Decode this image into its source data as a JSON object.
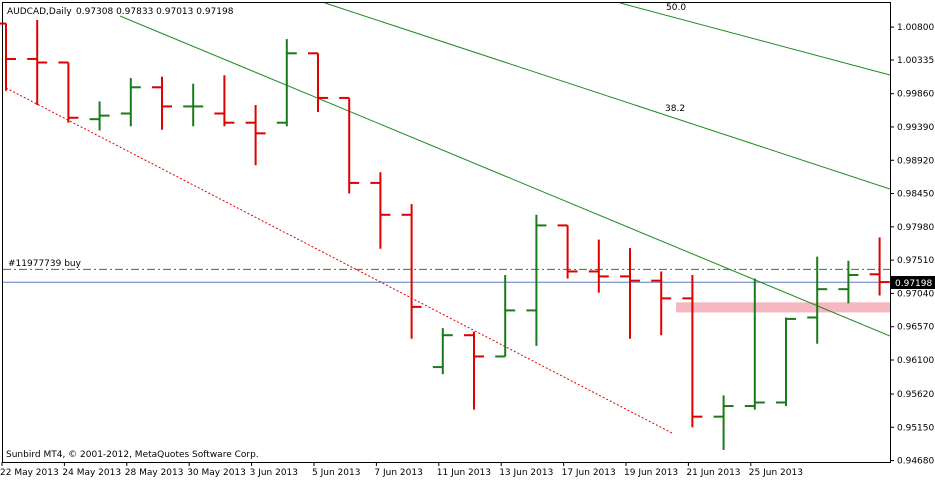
{
  "chart_data": {
    "type": "ohlc",
    "symbol_label": "AUDCAD,Daily",
    "header_values": "0.97308 0.97833 0.97013 0.97198",
    "footer_text": "Sunbird MT4, © 2001-2012, MetaQuotes Software Corp.",
    "order_label": "#11977739 buy",
    "current_price_label": "0.97198",
    "colors": {
      "bull": "#1a7a1a",
      "bear": "#e00000",
      "trendline": "#1f8a1f",
      "support": "#e00000",
      "order_line": "#1f8a1f",
      "price_line": "#5a7fb5",
      "zone": "#f5b7c0",
      "price_tag_bg": "#000000",
      "price_tag_text": "#ffffff"
    },
    "ylim": [
      0.9466,
      1.0114
    ],
    "y_ticks": [
      "1.00800",
      "1.00335",
      "0.99860",
      "0.99390",
      "0.98920",
      "0.98450",
      "0.97980",
      "0.97510",
      "0.97040",
      "0.96570",
      "0.96100",
      "0.95620",
      "0.95150",
      "0.94680"
    ],
    "x_ticks": [
      "22 May 2013",
      "24 May 2013",
      "28 May 2013",
      "30 May 2013",
      "3 Jun 2013",
      "5 Jun 2013",
      "7 Jun 2013",
      "11 Jun 2013",
      "13 Jun 2013",
      "17 Jun 2013",
      "19 Jun 2013",
      "21 Jun 2013",
      "25 Jun 2013"
    ],
    "x_tick_bars": [
      0,
      2,
      4,
      6,
      8,
      10,
      12,
      14,
      16,
      18,
      20,
      22,
      24
    ],
    "bars": [
      {
        "o": 1.0085,
        "h": 1.0085,
        "l": 0.999,
        "c": 1.0035
      },
      {
        "o": 1.0035,
        "h": 1.009,
        "l": 0.997,
        "c": 1.003
      },
      {
        "o": 1.003,
        "h": 1.003,
        "l": 0.9945,
        "c": 0.9952
      },
      {
        "o": 0.995,
        "h": 0.9975,
        "l": 0.9934,
        "c": 0.9955
      },
      {
        "o": 0.9958,
        "h": 1.0008,
        "l": 0.994,
        "c": 0.9995
      },
      {
        "o": 0.9995,
        "h": 1.001,
        "l": 0.9935,
        "c": 0.9968
      },
      {
        "o": 0.9968,
        "h": 1.0,
        "l": 0.994,
        "c": 0.9968
      },
      {
        "o": 0.9958,
        "h": 1.0012,
        "l": 0.994,
        "c": 0.9945
      },
      {
        "o": 0.9945,
        "h": 0.997,
        "l": 0.9885,
        "c": 0.993
      },
      {
        "o": 0.9945,
        "h": 1.0063,
        "l": 0.994,
        "c": 1.0043
      },
      {
        "o": 1.0043,
        "h": 1.0043,
        "l": 0.996,
        "c": 0.998
      },
      {
        "o": 0.998,
        "h": 0.998,
        "l": 0.9845,
        "c": 0.986
      },
      {
        "o": 0.986,
        "h": 0.9875,
        "l": 0.9767,
        "c": 0.9815
      },
      {
        "o": 0.9815,
        "h": 0.983,
        "l": 0.964,
        "c": 0.9685
      },
      {
        "o": 0.96,
        "h": 0.9655,
        "l": 0.959,
        "c": 0.9645
      },
      {
        "o": 0.9645,
        "h": 0.965,
        "l": 0.954,
        "c": 0.9615
      },
      {
        "o": 0.9615,
        "h": 0.973,
        "l": 0.9615,
        "c": 0.968
      },
      {
        "o": 0.968,
        "h": 0.9815,
        "l": 0.963,
        "c": 0.98
      },
      {
        "o": 0.98,
        "h": 0.98,
        "l": 0.9725,
        "c": 0.9735
      },
      {
        "o": 0.9735,
        "h": 0.978,
        "l": 0.9705,
        "c": 0.9728
      },
      {
        "o": 0.9728,
        "h": 0.9768,
        "l": 0.964,
        "c": 0.9722
      },
      {
        "o": 0.9722,
        "h": 0.9735,
        "l": 0.9645,
        "c": 0.9697
      },
      {
        "o": 0.9697,
        "h": 0.973,
        "l": 0.9515,
        "c": 0.953
      },
      {
        "o": 0.953,
        "h": 0.956,
        "l": 0.9483,
        "c": 0.9545
      },
      {
        "o": 0.9545,
        "h": 0.9725,
        "l": 0.954,
        "c": 0.955
      },
      {
        "o": 0.955,
        "h": 0.967,
        "l": 0.9545,
        "c": 0.9668
      },
      {
        "o": 0.967,
        "h": 0.9756,
        "l": 0.9633,
        "c": 0.971
      },
      {
        "o": 0.971,
        "h": 0.975,
        "l": 0.969,
        "c": 0.973
      },
      {
        "o": 0.9731,
        "h": 0.9783,
        "l": 0.9701,
        "c": 0.972
      }
    ],
    "fib_labels": [
      "50.0",
      "38.2"
    ],
    "annotations": {
      "order_price": 0.9738,
      "current_price": 0.97198,
      "zone_low": 0.968,
      "zone_high": 0.969
    }
  }
}
